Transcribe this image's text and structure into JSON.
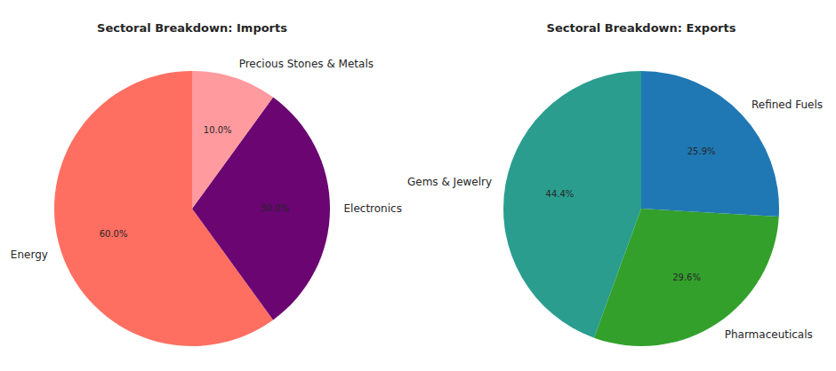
{
  "chart_data": [
    {
      "type": "pie",
      "title": "Sectoral Breakdown: Imports",
      "categories": [
        "Energy",
        "Electronics",
        "Precious Stones & Metals"
      ],
      "values": [
        60,
        30,
        10
      ],
      "value_labels": [
        "60.0%",
        "30.0%",
        "10.0%"
      ],
      "colors": [
        "#ff6f61",
        "#6a0572",
        "#ff9a9e"
      ],
      "data_labels": true
    },
    {
      "type": "pie",
      "title": "Sectoral Breakdown: Exports",
      "categories": [
        "Gems & Jewelry",
        "Pharmaceuticals",
        "Refined Fuels"
      ],
      "values": [
        44.4,
        29.6,
        25.9
      ],
      "value_labels": [
        "44.4%",
        "29.6%",
        "25.9%"
      ],
      "colors": [
        "#2a9d8f",
        "#33a02c",
        "#1f78b4"
      ],
      "data_labels": true
    }
  ]
}
